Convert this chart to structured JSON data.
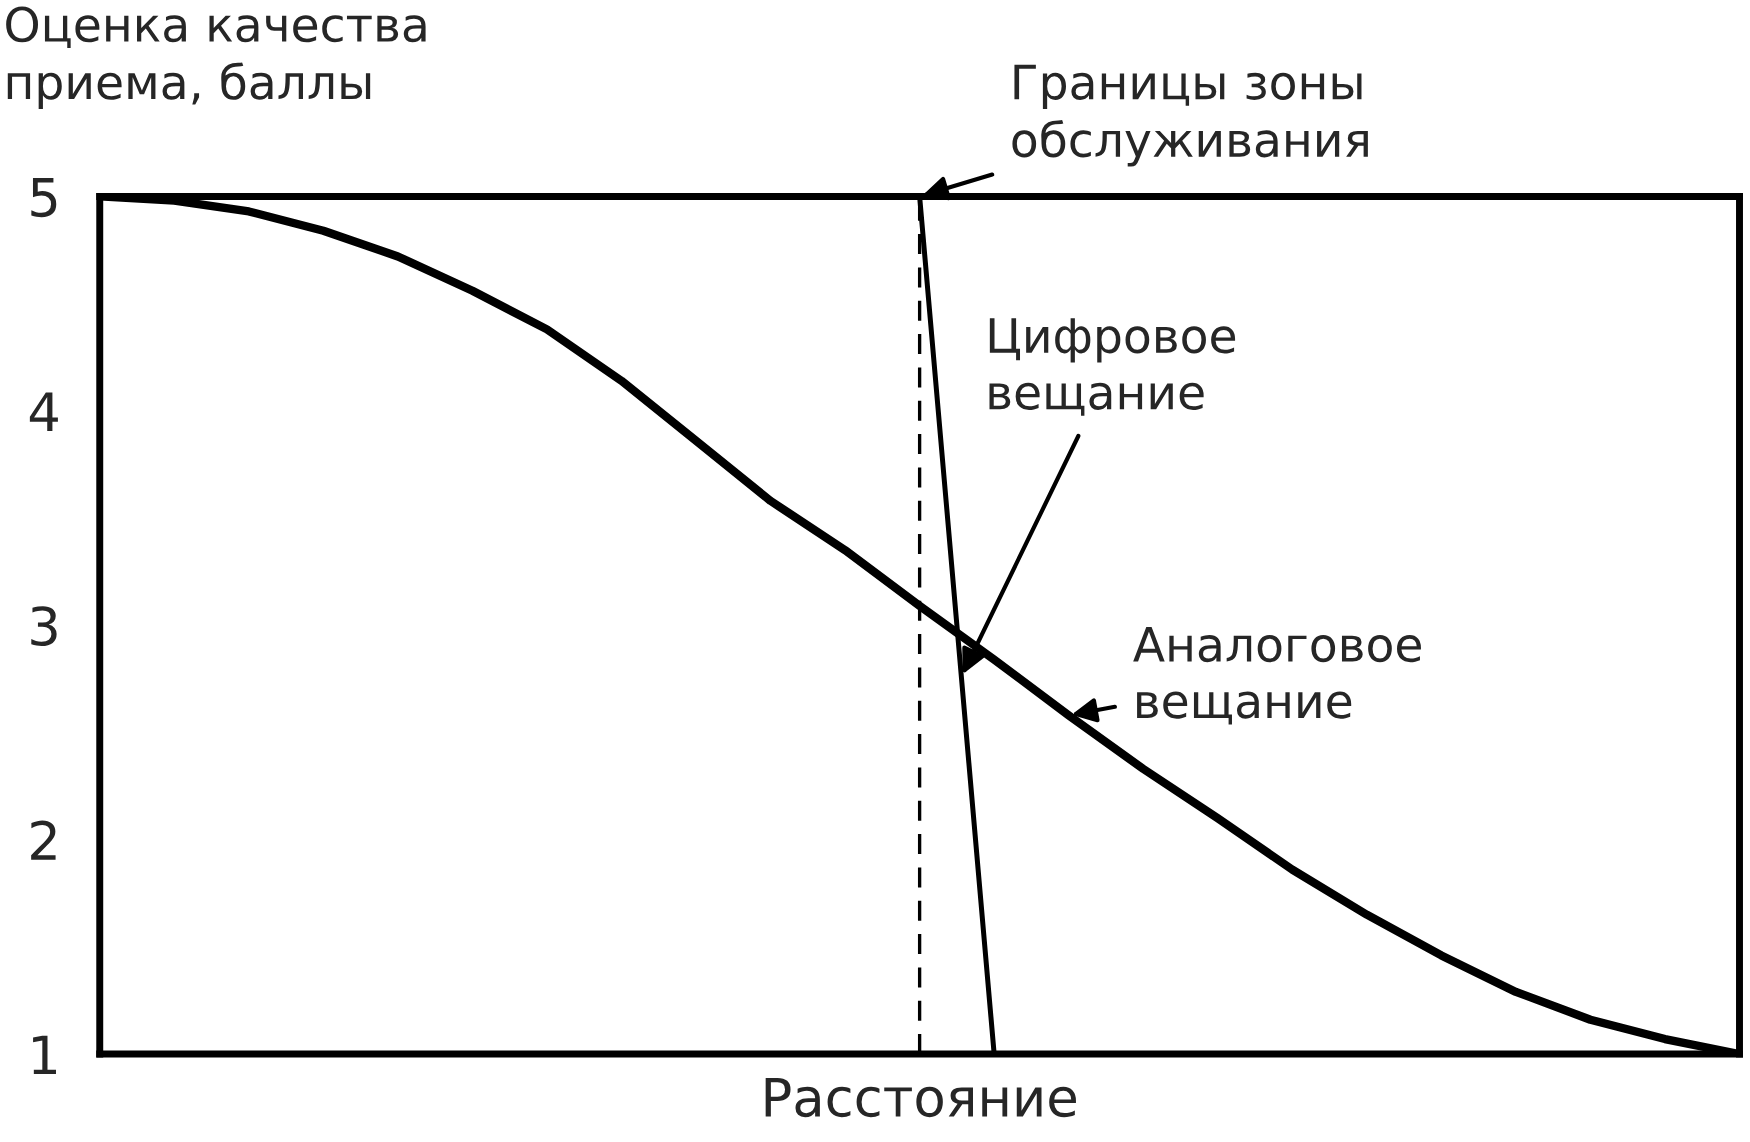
{
  "chart_data": {
    "type": "line",
    "ylabel": "Оценка качества\nприема, баллы",
    "xlabel": "Расстояние",
    "categories": [
      null,
      null,
      null,
      null,
      null,
      null,
      null,
      null,
      null,
      null,
      null,
      null,
      null,
      null,
      null,
      null,
      null,
      null,
      null,
      null,
      null,
      null,
      null
    ],
    "series": [
      {
        "name": "Аналоговое\nвещание",
        "color": "#000000",
        "values": [
          5,
          4.98,
          4.93,
          4.84,
          4.72,
          4.56,
          4.38,
          4.14,
          3.86,
          3.58,
          3.35,
          3.09,
          2.84,
          2.58,
          2.33,
          2.1,
          1.86,
          1.65,
          1.46,
          1.29,
          1.16,
          1.07,
          1
        ]
      },
      {
        "name": "Цифровое\nвещание",
        "color": "#000000",
        "values": [
          null,
          null,
          null,
          null,
          null,
          null,
          null,
          null,
          null,
          null,
          null,
          5,
          1,
          null,
          null,
          null,
          null,
          null,
          null,
          null,
          null,
          null,
          null
        ]
      }
    ],
    "annotations": [
      "Границы зоны\nобслуживания"
    ],
    "ylim": [
      1,
      5
    ],
    "yticks": [
      1,
      2,
      3,
      4,
      5
    ],
    "grid": false,
    "legend": false,
    "marker": "none",
    "line_style": "solid",
    "tick_labels": "y"
  }
}
